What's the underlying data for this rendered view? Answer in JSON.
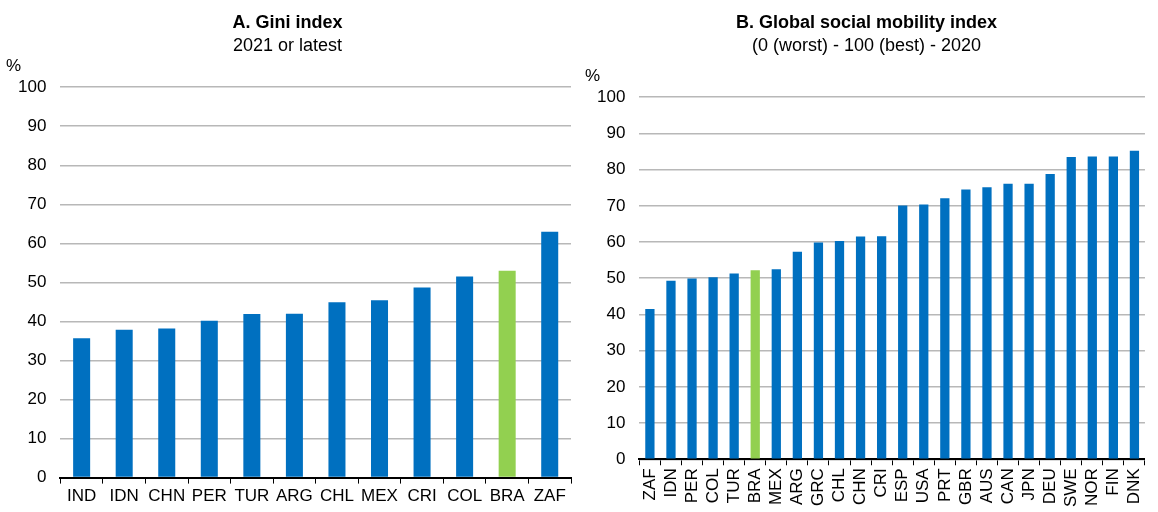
{
  "chart_data": [
    {
      "type": "bar",
      "title": "A. Gini index",
      "subtitle": "2021 or latest",
      "ylabel": "%",
      "categories": [
        "IND",
        "IDN",
        "CHN",
        "PER",
        "TUR",
        "ARG",
        "CHL",
        "MEX",
        "CRI",
        "COL",
        "BRA",
        "ZAF"
      ],
      "values": [
        35.7,
        37.9,
        38.2,
        40.2,
        41.9,
        42.0,
        44.9,
        45.4,
        48.7,
        51.5,
        53.0,
        63.0
      ],
      "colors": [
        "#0070c0",
        "#0070c0",
        "#0070c0",
        "#0070c0",
        "#0070c0",
        "#0070c0",
        "#0070c0",
        "#0070c0",
        "#0070c0",
        "#0070c0",
        "#92d050",
        "#0070c0"
      ],
      "ylim": [
        0,
        100
      ],
      "yticks": [
        0,
        10,
        20,
        30,
        40,
        50,
        60,
        70,
        80,
        90,
        100
      ],
      "grid": "y",
      "legend": false
    },
    {
      "type": "bar",
      "title": "B. Global social mobility index",
      "subtitle": "(0 (worst) - 100 (best) - 2020",
      "ylabel": "%",
      "categories": [
        "ZAF",
        "IDN",
        "PER",
        "COL",
        "TUR",
        "BRA",
        "MEX",
        "ARG",
        "GRC",
        "CHL",
        "CHN",
        "CRI",
        "ESP",
        "USA",
        "PRT",
        "GBR",
        "AUS",
        "CAN",
        "JPN",
        "DEU",
        "SWE",
        "NOR",
        "FIN",
        "DNK"
      ],
      "values": [
        41.5,
        49.3,
        49.9,
        50.3,
        51.3,
        52.2,
        52.5,
        57.3,
        59.9,
        60.3,
        61.5,
        61.6,
        70.1,
        70.4,
        72.1,
        74.5,
        75.1,
        76.1,
        76.1,
        78.8,
        83.5,
        83.6,
        83.6,
        85.2
      ],
      "colors": [
        "#0070c0",
        "#0070c0",
        "#0070c0",
        "#0070c0",
        "#0070c0",
        "#92d050",
        "#0070c0",
        "#0070c0",
        "#0070c0",
        "#0070c0",
        "#0070c0",
        "#0070c0",
        "#0070c0",
        "#0070c0",
        "#0070c0",
        "#0070c0",
        "#0070c0",
        "#0070c0",
        "#0070c0",
        "#0070c0",
        "#0070c0",
        "#0070c0",
        "#0070c0",
        "#0070c0"
      ],
      "ylim": [
        0,
        100
      ],
      "yticks": [
        0,
        10,
        20,
        30,
        40,
        50,
        60,
        70,
        80,
        90,
        100
      ],
      "grid": "y",
      "legend": false
    }
  ]
}
